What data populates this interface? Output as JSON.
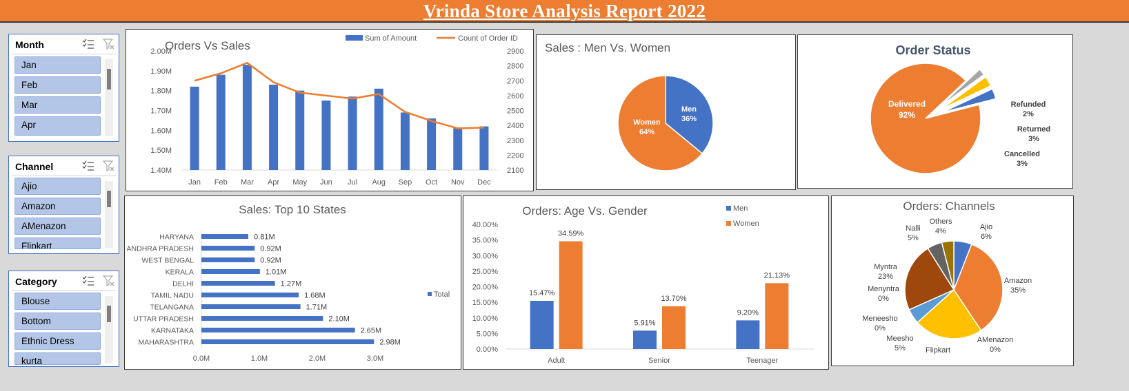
{
  "title": "Vrinda Store Analysis Report 2022",
  "slicers": [
    {
      "title": "Month",
      "items": [
        "Jan",
        "Feb",
        "Mar",
        "Apr"
      ]
    },
    {
      "title": "Channel",
      "items": [
        "Ajio",
        "Amazon",
        "AMenazon",
        "Flipkart"
      ]
    },
    {
      "title": "Category",
      "items": [
        "Blouse",
        "Bottom",
        "Ethnic Dress",
        "kurta"
      ]
    }
  ],
  "chart_data": [
    {
      "id": "orders-vs-sales",
      "type": "bar",
      "title": "Orders Vs Sales",
      "categories": [
        "Jan",
        "Feb",
        "Mar",
        "Apr",
        "May",
        "Jun",
        "Jul",
        "Aug",
        "Sep",
        "Oct",
        "Nov",
        "Dec"
      ],
      "series": [
        {
          "name": "Sum of Amount",
          "type": "bar",
          "axis": "left",
          "values": [
            1.82,
            1.88,
            1.93,
            1.83,
            1.8,
            1.75,
            1.77,
            1.81,
            1.69,
            1.66,
            1.61,
            1.62
          ]
        },
        {
          "name": "Count of Order ID",
          "type": "line",
          "axis": "right",
          "values": [
            2700,
            2750,
            2820,
            2690,
            2620,
            2600,
            2580,
            2610,
            2490,
            2430,
            2380,
            2385
          ]
        }
      ],
      "ylim_left": [
        1.4,
        2.0
      ],
      "ylim_right": [
        2100,
        2900
      ],
      "yticks_left": [
        "1.40M",
        "1.50M",
        "1.60M",
        "1.70M",
        "1.80M",
        "1.90M",
        "2.00M"
      ],
      "yticks_right": [
        "2100",
        "2200",
        "2300",
        "2400",
        "2500",
        "2600",
        "2700",
        "2800",
        "2900"
      ],
      "colors": {
        "bar": "#4472c4",
        "line": "#ed7d31"
      },
      "legend": "top-right"
    },
    {
      "id": "men-vs-women",
      "type": "pie",
      "title": "Sales : Men Vs. Women",
      "slices": [
        {
          "label": "Men",
          "value": 36,
          "text": "36%",
          "color": "#4472c4"
        },
        {
          "label": "Women",
          "value": 64,
          "text": "64%",
          "color": "#ed7d31"
        }
      ]
    },
    {
      "id": "order-status",
      "type": "pie",
      "title": "Order Status",
      "slices": [
        {
          "label": "Delivered",
          "value": 92,
          "text": "92%",
          "color": "#ed7d31"
        },
        {
          "label": "Refunded",
          "value": 2,
          "text": "2%",
          "color": "#a5a5a5"
        },
        {
          "label": "Returned",
          "value": 3,
          "text": "3%",
          "color": "#ffc000"
        },
        {
          "label": "Cancelled",
          "value": 3,
          "text": "3%",
          "color": "#4472c4"
        }
      ]
    },
    {
      "id": "top-10-states",
      "type": "bar",
      "orientation": "horizontal",
      "title": "Sales: Top 10 States",
      "categories": [
        "HARYANA",
        "ANDHRA PRADESH",
        "WEST BENGAL",
        "KERALA",
        "DELHI",
        "TAMIL NADU",
        "TELANGANA",
        "UTTAR PRADESH",
        "KARNATAKA",
        "MAHARASHTRA"
      ],
      "series": [
        {
          "name": "Total",
          "values": [
            0.81,
            0.92,
            0.92,
            1.01,
            1.27,
            1.68,
            1.71,
            2.1,
            2.65,
            2.98
          ],
          "labels": [
            "0.81M",
            "0.92M",
            "0.92M",
            "1.01M",
            "1.27M",
            "1.68M",
            "1.71M",
            "2.10M",
            "2.65M",
            "2.98M"
          ]
        }
      ],
      "xlim": [
        0,
        3.0
      ],
      "xticks": [
        "0.0M",
        "1.0M",
        "2.0M",
        "3.0M"
      ],
      "colors": {
        "bar": "#4472c4"
      },
      "legend": "right"
    },
    {
      "id": "age-vs-gender",
      "type": "bar",
      "title": "Orders: Age Vs. Gender",
      "categories": [
        "Adult",
        "Senior",
        "Teenager"
      ],
      "series": [
        {
          "name": "Men",
          "values": [
            15.47,
            5.91,
            9.2
          ],
          "labels": [
            "15.47%",
            "5.91%",
            "9.20%"
          ],
          "color": "#4472c4"
        },
        {
          "name": "Women",
          "values": [
            34.59,
            13.7,
            21.13
          ],
          "labels": [
            "34.59%",
            "13.70%",
            "21.13%"
          ],
          "color": "#ed7d31"
        }
      ],
      "ylim": [
        0,
        40
      ],
      "yticks": [
        "0.00%",
        "5.00%",
        "10.00%",
        "15.00%",
        "20.00%",
        "25.00%",
        "30.00%",
        "35.00%",
        "40.00%"
      ],
      "legend": "top-right"
    },
    {
      "id": "channels",
      "type": "pie",
      "title": "Orders: Channels",
      "slices": [
        {
          "label": "Ajio",
          "value": 6,
          "text": "6%",
          "color": "#4472c4"
        },
        {
          "label": "Amazon",
          "value": 35,
          "text": "35%",
          "color": "#ed7d31"
        },
        {
          "label": "AMenazon",
          "value": 0,
          "text": "0%",
          "color": "#a5a5a5"
        },
        {
          "label": "Flipkart",
          "value": 23,
          "text": "",
          "color": "#ffc000"
        },
        {
          "label": "Meesho",
          "value": 5,
          "text": "5%",
          "color": "#5b9bd5"
        },
        {
          "label": "Meneesho",
          "value": 0,
          "text": "0%",
          "color": "#70ad47"
        },
        {
          "label": "Menyntra",
          "value": 0,
          "text": "0%",
          "color": "#264478"
        },
        {
          "label": "Myntra",
          "value": 23,
          "text": "23%",
          "color": "#9e480e"
        },
        {
          "label": "Nalli",
          "value": 5,
          "text": "5%",
          "color": "#636363"
        },
        {
          "label": "Others",
          "value": 4,
          "text": "4%",
          "color": "#997300"
        }
      ]
    }
  ]
}
